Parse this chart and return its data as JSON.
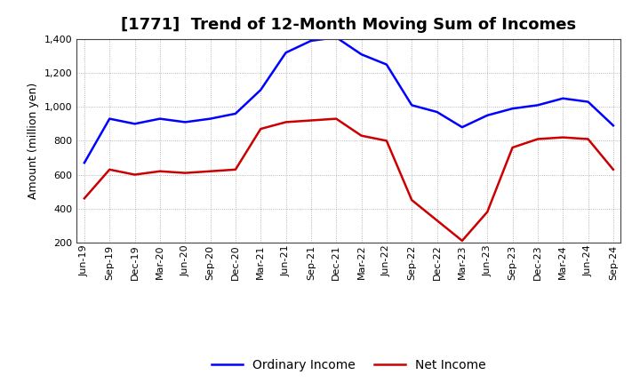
{
  "title": "[1771]  Trend of 12-Month Moving Sum of Incomes",
  "ylabel": "Amount (million yen)",
  "x_labels": [
    "Jun-19",
    "Sep-19",
    "Dec-19",
    "Mar-20",
    "Jun-20",
    "Sep-20",
    "Dec-20",
    "Mar-21",
    "Jun-21",
    "Sep-21",
    "Dec-21",
    "Mar-22",
    "Jun-22",
    "Sep-22",
    "Dec-22",
    "Mar-23",
    "Jun-23",
    "Sep-23",
    "Dec-23",
    "Mar-24",
    "Jun-24",
    "Sep-24"
  ],
  "ordinary_income": [
    670,
    930,
    900,
    930,
    910,
    930,
    960,
    1100,
    1320,
    1390,
    1410,
    1310,
    1250,
    1010,
    970,
    880,
    950,
    990,
    1010,
    1050,
    1030,
    890
  ],
  "net_income": [
    460,
    630,
    600,
    620,
    610,
    620,
    630,
    870,
    910,
    920,
    930,
    830,
    800,
    450,
    330,
    210,
    380,
    760,
    810,
    820,
    810,
    630
  ],
  "ordinary_color": "#0000ff",
  "net_color": "#cc0000",
  "ylim": [
    200,
    1400
  ],
  "yticks": [
    200,
    400,
    600,
    800,
    1000,
    1200,
    1400
  ],
  "background_color": "#ffffff",
  "plot_background": "#ffffff",
  "grid_color": "#999999",
  "title_fontsize": 13,
  "ylabel_fontsize": 9,
  "tick_fontsize": 8,
  "legend_fontsize": 10
}
